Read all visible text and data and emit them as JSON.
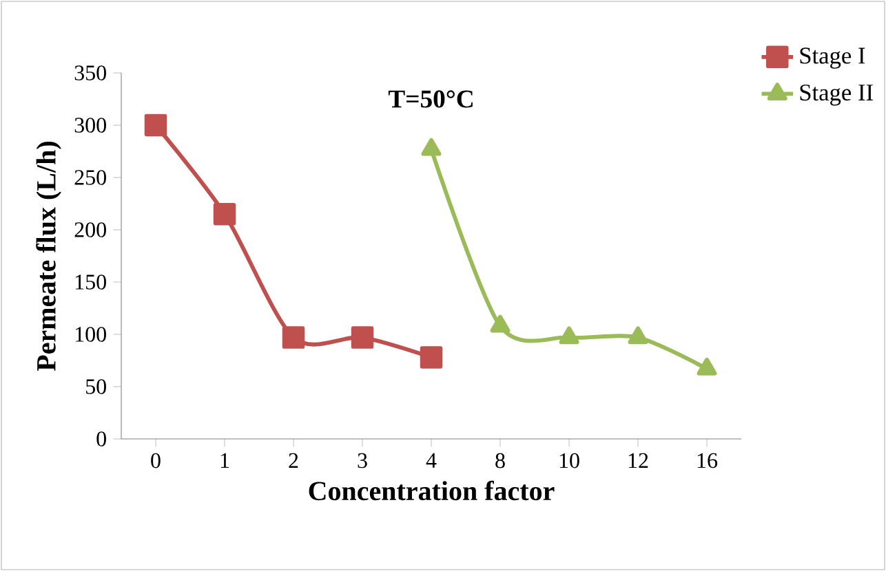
{
  "chart_data": {
    "type": "line",
    "title": "T=50°C",
    "xlabel": "Concentration  factor",
    "ylabel": "Permeate flux (L/h)",
    "categories": [
      "0",
      "1",
      "2",
      "3",
      "4",
      "8",
      "10",
      "12",
      "16"
    ],
    "series": [
      {
        "name": "Stage I",
        "color": "#c0504d",
        "marker": "square",
        "values": [
          300,
          215,
          97,
          97,
          78,
          null,
          null,
          null,
          null
        ]
      },
      {
        "name": "Stage II",
        "color": "#9bbb59",
        "marker": "triangle",
        "values": [
          null,
          null,
          null,
          null,
          277,
          108,
          97,
          97,
          67
        ]
      }
    ],
    "ylim": [
      0,
      350
    ],
    "yticks": [
      0,
      50,
      100,
      150,
      200,
      250,
      300,
      350
    ],
    "grid": false,
    "legend": "top right"
  }
}
